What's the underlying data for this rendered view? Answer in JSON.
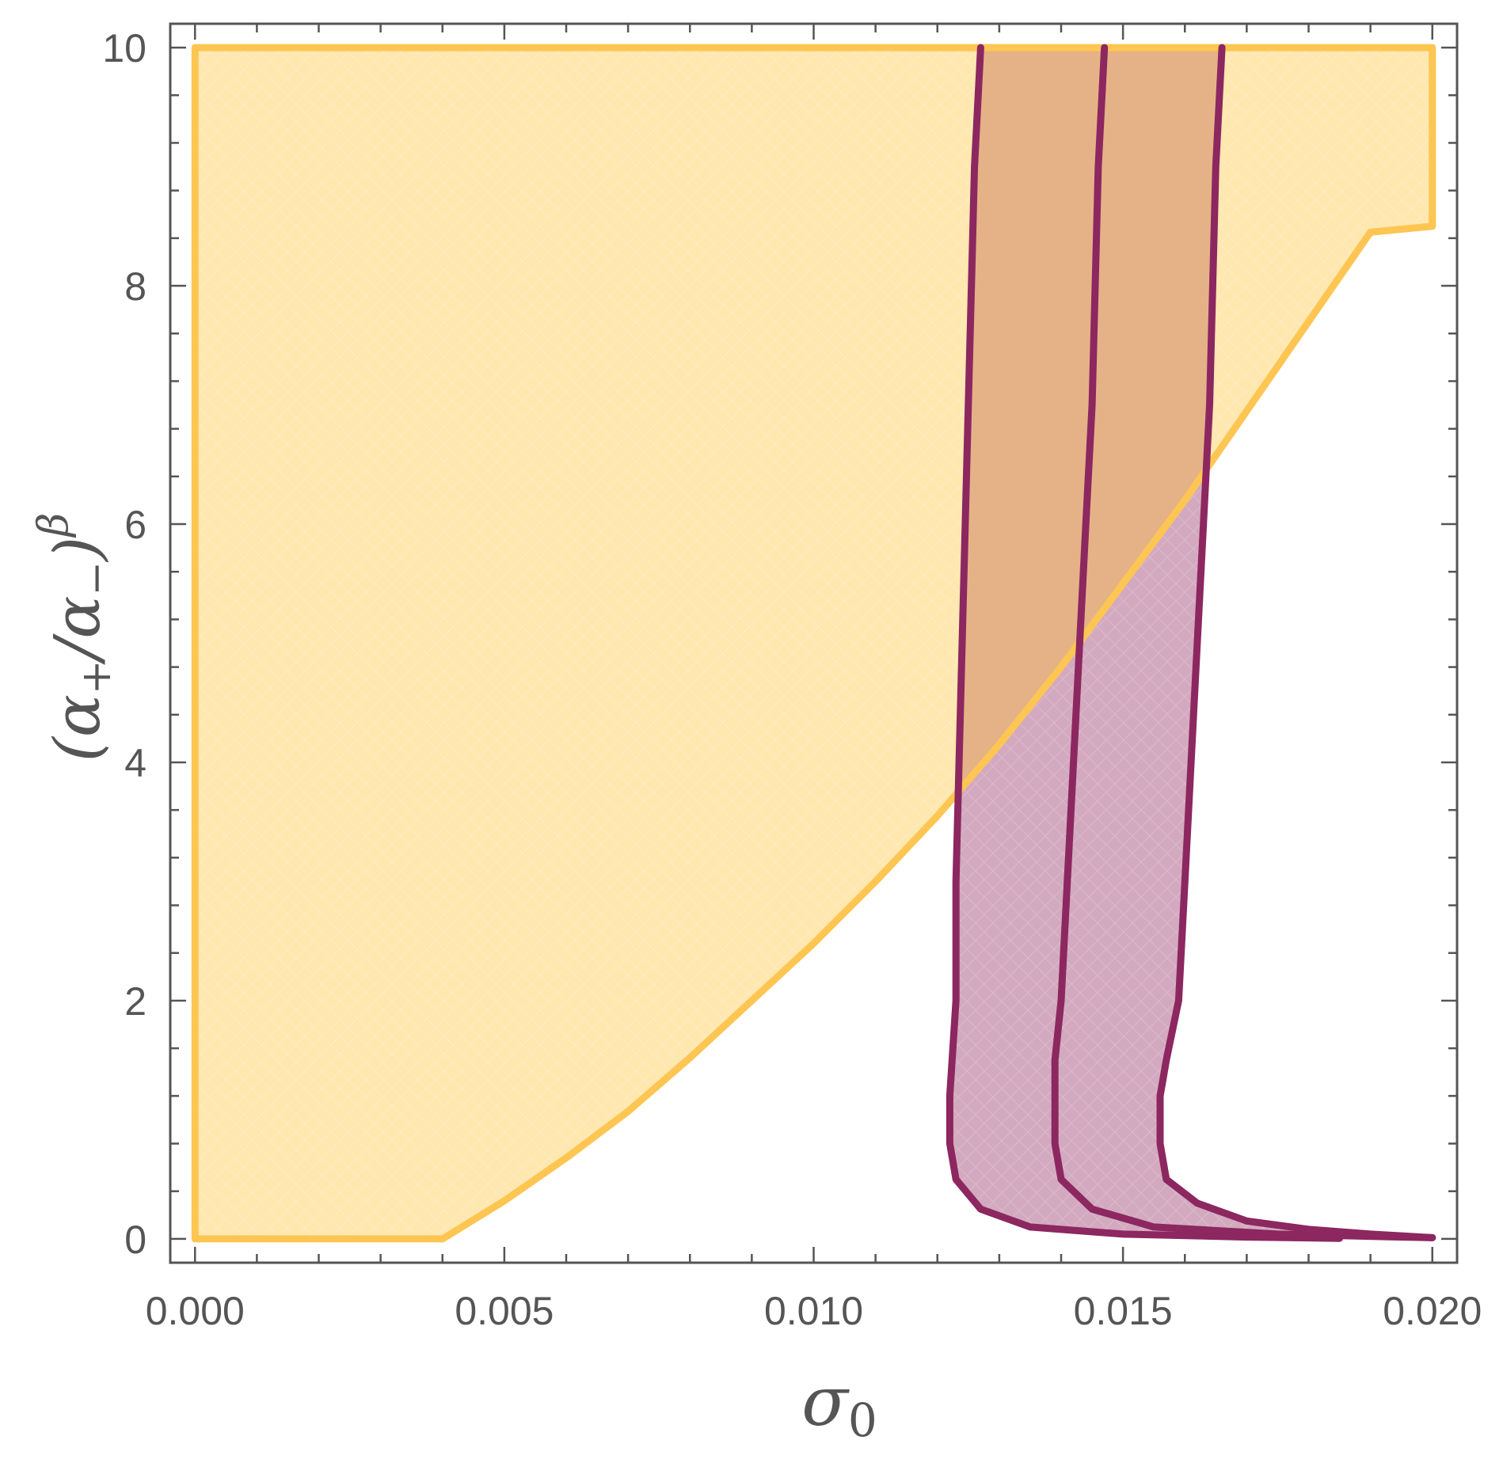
{
  "chart_data": {
    "type": "area",
    "xlabel": {
      "base": "σ",
      "sub": "0"
    },
    "ylabel": {
      "open": "(α",
      "sub_plus": "+",
      "slash": "/α",
      "sub_minus": "−",
      "close": ")",
      "sup": "β"
    },
    "xlim": [
      -0.0004,
      0.0204
    ],
    "ylim": [
      -0.2,
      10.2
    ],
    "x_ticks": [
      {
        "value": 0.0,
        "label": "0.000"
      },
      {
        "value": 0.005,
        "label": "0.005"
      },
      {
        "value": 0.01,
        "label": "0.010"
      },
      {
        "value": 0.015,
        "label": "0.015"
      },
      {
        "value": 0.02,
        "label": "0.020"
      }
    ],
    "y_ticks": [
      {
        "value": 0,
        "label": "0"
      },
      {
        "value": 2,
        "label": "2"
      },
      {
        "value": 4,
        "label": "4"
      },
      {
        "value": 6,
        "label": "6"
      },
      {
        "value": 8,
        "label": "8"
      },
      {
        "value": 10,
        "label": "10"
      }
    ],
    "x_minor_step": 0.001,
    "y_minor_step": 0.4,
    "colors": {
      "yellow_fill": "#ffe7b0",
      "yellow_line": "#fdc652",
      "purple_line": "#8c2760",
      "purple_fill": "#d3a9bf",
      "overlap_fill": "#e5b287",
      "axis": "#555555"
    },
    "regions": [
      {
        "id": "yellow-region",
        "points": [
          [
            0,
            0
          ],
          [
            0.004,
            0
          ],
          [
            0.005,
            0.32
          ],
          [
            0.006,
            0.68
          ],
          [
            0.007,
            1.07
          ],
          [
            0.008,
            1.52
          ],
          [
            0.009,
            2.0
          ],
          [
            0.01,
            2.48
          ],
          [
            0.011,
            3.0
          ],
          [
            0.012,
            3.55
          ],
          [
            0.013,
            4.15
          ],
          [
            0.014,
            4.8
          ],
          [
            0.015,
            5.5
          ],
          [
            0.016,
            6.2
          ],
          [
            0.017,
            6.95
          ],
          [
            0.018,
            7.7
          ],
          [
            0.019,
            8.45
          ],
          [
            0.02,
            8.5
          ],
          [
            0.02,
            10
          ],
          [
            0,
            10
          ]
        ]
      }
    ],
    "curves": [
      {
        "id": "boundary-left",
        "points": [
          [
            0.0127,
            10
          ],
          [
            0.0126,
            9
          ],
          [
            0.01255,
            8
          ],
          [
            0.0125,
            7
          ],
          [
            0.01245,
            6
          ],
          [
            0.0124,
            5
          ],
          [
            0.01235,
            4
          ],
          [
            0.0123,
            3
          ],
          [
            0.0123,
            2
          ],
          [
            0.0122,
            1.2
          ],
          [
            0.0122,
            0.8
          ],
          [
            0.0123,
            0.5
          ],
          [
            0.0127,
            0.25
          ],
          [
            0.0135,
            0.1
          ],
          [
            0.015,
            0.04
          ],
          [
            0.017,
            0.015
          ],
          [
            0.0185,
            0.005
          ]
        ]
      },
      {
        "id": "boundary-middle",
        "points": [
          [
            0.0147,
            10
          ],
          [
            0.0146,
            9
          ],
          [
            0.01455,
            8
          ],
          [
            0.0145,
            7
          ],
          [
            0.0144,
            6
          ],
          [
            0.0143,
            5
          ],
          [
            0.0142,
            4
          ],
          [
            0.0141,
            3
          ],
          [
            0.014,
            2
          ],
          [
            0.0139,
            1.5
          ],
          [
            0.0139,
            1.2
          ],
          [
            0.0139,
            0.8
          ],
          [
            0.014,
            0.5
          ],
          [
            0.0145,
            0.25
          ],
          [
            0.0155,
            0.1
          ],
          [
            0.0175,
            0.04
          ],
          [
            0.0195,
            0.015
          ],
          [
            0.02,
            0.01
          ]
        ]
      },
      {
        "id": "boundary-right",
        "points": [
          [
            0.0166,
            10
          ],
          [
            0.0165,
            9
          ],
          [
            0.01645,
            8
          ],
          [
            0.0164,
            7
          ],
          [
            0.0163,
            6
          ],
          [
            0.0162,
            5
          ],
          [
            0.0161,
            4
          ],
          [
            0.016,
            3
          ],
          [
            0.0159,
            2
          ],
          [
            0.0157,
            1.5
          ],
          [
            0.0156,
            1.2
          ],
          [
            0.0156,
            0.8
          ],
          [
            0.0157,
            0.5
          ],
          [
            0.0162,
            0.3
          ],
          [
            0.017,
            0.15
          ],
          [
            0.018,
            0.08
          ],
          [
            0.019,
            0.04
          ],
          [
            0.02,
            0.01
          ]
        ]
      }
    ]
  }
}
